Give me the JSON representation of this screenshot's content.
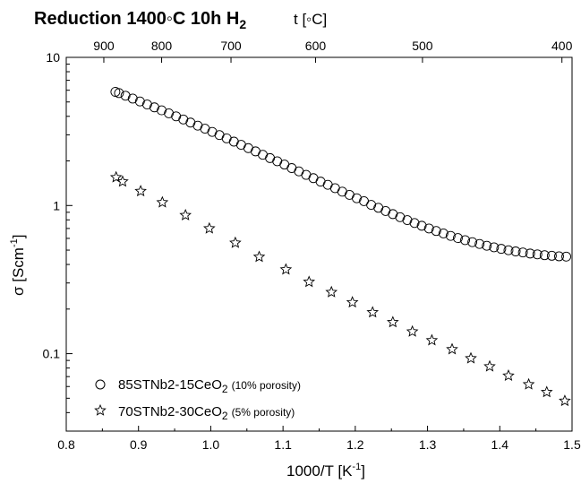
{
  "chart_data": {
    "type": "scatter",
    "title": "Reduction 1400◦C 10h H",
    "title_sub": "2",
    "xlabel": "1000/T [K",
    "xlabel_sup": "-1",
    "xlabel_end": "]",
    "ylabel": "σ [Scm",
    "ylabel_sup": "-1",
    "ylabel_end": "]",
    "top_axis_label": "t [◦C]",
    "xlim": [
      0.8,
      1.5
    ],
    "ylim": [
      0.03,
      10
    ],
    "y_scale": "log",
    "grid": false,
    "legend_position": "bottom-left",
    "x_ticks": [
      "0.8",
      "0.9",
      "1.0",
      "1.1",
      "1.2",
      "1.3",
      "1.4",
      "1.5"
    ],
    "y_ticks": [
      "0.1",
      "1",
      "10"
    ],
    "top_ticks": [
      {
        "label": "900",
        "x": 0.852
      },
      {
        "label": "800",
        "x": 0.932
      },
      {
        "label": "700",
        "x": 1.028
      },
      {
        "label": "600",
        "x": 1.145
      },
      {
        "label": "500",
        "x": 1.293
      },
      {
        "label": "400",
        "x": 1.486
      }
    ],
    "series": [
      {
        "name": "85STNb2-15CeO",
        "name_sub": "2",
        "name_note": "(10% porosity)",
        "marker": "circle",
        "x": [
          0.868,
          0.873,
          0.882,
          0.892,
          0.902,
          0.912,
          0.922,
          0.932,
          0.942,
          0.952,
          0.962,
          0.972,
          0.982,
          0.992,
          1.002,
          1.012,
          1.022,
          1.032,
          1.042,
          1.052,
          1.062,
          1.072,
          1.082,
          1.092,
          1.102,
          1.112,
          1.122,
          1.132,
          1.142,
          1.152,
          1.162,
          1.172,
          1.182,
          1.192,
          1.202,
          1.212,
          1.222,
          1.232,
          1.242,
          1.252,
          1.262,
          1.272,
          1.282,
          1.292,
          1.302,
          1.312,
          1.322,
          1.332,
          1.342,
          1.352,
          1.362,
          1.372,
          1.382,
          1.392,
          1.402,
          1.412,
          1.422,
          1.432,
          1.442,
          1.452,
          1.462,
          1.472,
          1.482,
          1.492
        ],
        "y": [
          5.85,
          5.74,
          5.51,
          5.27,
          5.04,
          4.81,
          4.6,
          4.39,
          4.19,
          4.0,
          3.81,
          3.63,
          3.46,
          3.3,
          3.14,
          2.99,
          2.84,
          2.7,
          2.57,
          2.44,
          2.32,
          2.2,
          2.09,
          1.99,
          1.89,
          1.79,
          1.7,
          1.61,
          1.53,
          1.45,
          1.38,
          1.31,
          1.24,
          1.18,
          1.12,
          1.07,
          1.01,
          0.965,
          0.918,
          0.875,
          0.834,
          0.797,
          0.762,
          0.73,
          0.7,
          0.673,
          0.648,
          0.624,
          0.603,
          0.584,
          0.566,
          0.55,
          0.535,
          0.522,
          0.51,
          0.499,
          0.49,
          0.482,
          0.474,
          0.468,
          0.462,
          0.458,
          0.454,
          0.452
        ]
      },
      {
        "name": "70STNb2-30CeO",
        "name_sub": "2",
        "name_note": "(5% porosity)",
        "marker": "star",
        "x": [
          0.869,
          0.878,
          0.903,
          0.933,
          0.965,
          0.998,
          1.034,
          1.067,
          1.104,
          1.136,
          1.167,
          1.196,
          1.224,
          1.252,
          1.279,
          1.306,
          1.334,
          1.36,
          1.386,
          1.412,
          1.44,
          1.465,
          1.49
        ],
        "y": [
          1.55,
          1.45,
          1.25,
          1.05,
          0.86,
          0.7,
          0.56,
          0.45,
          0.37,
          0.305,
          0.26,
          0.222,
          0.19,
          0.163,
          0.141,
          0.123,
          0.107,
          0.093,
          0.082,
          0.071,
          0.062,
          0.055,
          0.048
        ]
      }
    ]
  }
}
